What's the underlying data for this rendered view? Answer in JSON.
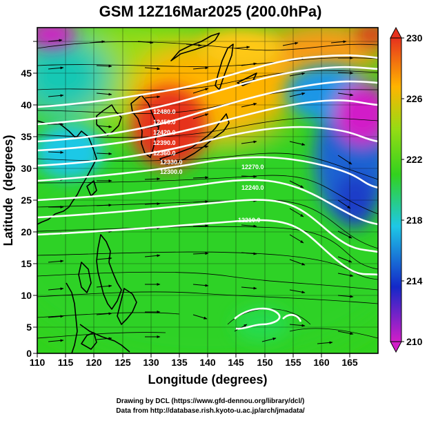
{
  "title": "GSM 12Z16Mar2025 (200.0hPa)",
  "xlabel": "Longitude (degrees)",
  "ylabel": "Latitude  (degrees)",
  "x_ticks": [
    "110",
    "115",
    "120",
    "125",
    "130",
    "135",
    "140",
    "145",
    "150",
    "155",
    "160",
    "165"
  ],
  "y_ticks": [
    "0",
    "5",
    "10",
    "15",
    "20",
    "25",
    "30",
    "35",
    "40",
    "45"
  ],
  "colorbar": {
    "labels": [
      "210",
      "214",
      "218",
      "222",
      "226",
      "230"
    ],
    "colors": [
      "#d21ec8",
      "#1428c8",
      "#1ec8e6",
      "#32d21e",
      "#96dc14",
      "#ffb400",
      "#e6321e"
    ]
  },
  "contour_labels": [
    "12480.0",
    "12450.0",
    "12420.0",
    "12390.0",
    "12360.0",
    "12330.0",
    "12300.0",
    "12270.0",
    "12240.0",
    "12210.0"
  ],
  "credits": {
    "line1": "Drawing by DCL (https://www.gfd-dennou.org/library/dcl/)",
    "line2": "Data from http://database.rish.kyoto-u.ac.jp/arch/jmadata/"
  },
  "chart_data": {
    "type": "map",
    "xlim": [
      110,
      170
    ],
    "ylim": [
      0,
      50
    ],
    "field": "temperature (K), shaded",
    "contour_field": "geopotential height, white contours"
  }
}
